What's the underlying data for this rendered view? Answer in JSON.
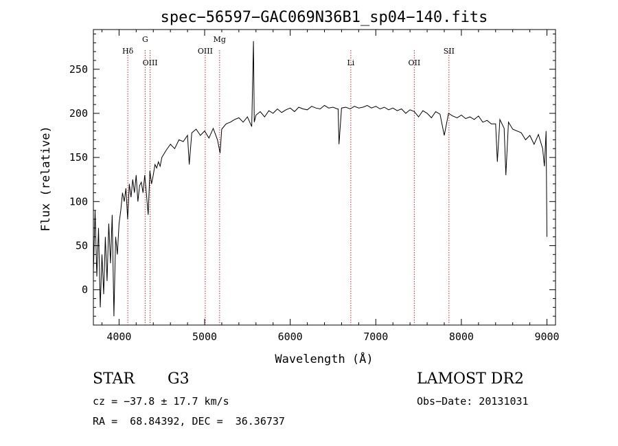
{
  "chart_data": {
    "type": "line",
    "title": "spec−56597−GAC069N36B1_sp04−140.fits",
    "xlabel": "Wavelength (Å)",
    "ylabel": "Flux (relative)",
    "xlim": [
      3700,
      9100
    ],
    "ylim": [
      -40,
      295
    ],
    "xticks": [
      "4000",
      "5000",
      "6000",
      "7000",
      "8000",
      "9000"
    ],
    "yticks": [
      "0",
      "50",
      "100",
      "150",
      "200",
      "250"
    ],
    "grid": false,
    "series": [
      {
        "x": [
          3700,
          3720,
          3740,
          3760,
          3780,
          3800,
          3820,
          3840,
          3860,
          3880,
          3900,
          3920,
          3940,
          3960,
          3980,
          4000,
          4020,
          4040,
          4060,
          4080,
          4100,
          4120,
          4140,
          4160,
          4180,
          4200,
          4220,
          4240,
          4260,
          4280,
          4300,
          4320,
          4340,
          4360,
          4380,
          4400,
          4420,
          4440,
          4460,
          4480,
          4500,
          4550,
          4600,
          4650,
          4700,
          4750,
          4800,
          4820,
          4850,
          4900,
          4950,
          5000,
          5050,
          5100,
          5150,
          5180,
          5200,
          5250,
          5300,
          5350,
          5400,
          5450,
          5500,
          5550,
          5570,
          5580,
          5600,
          5650,
          5700,
          5750,
          5800,
          5850,
          5900,
          5950,
          6000,
          6050,
          6100,
          6150,
          6200,
          6250,
          6300,
          6350,
          6400,
          6450,
          6500,
          6550,
          6560,
          6570,
          6600,
          6650,
          6700,
          6750,
          6800,
          6850,
          6900,
          6950,
          7000,
          7050,
          7100,
          7150,
          7200,
          7250,
          7300,
          7350,
          7400,
          7450,
          7500,
          7550,
          7600,
          7650,
          7700,
          7750,
          7800,
          7850,
          7900,
          7950,
          8000,
          8050,
          8100,
          8150,
          8200,
          8250,
          8300,
          8350,
          8400,
          8420,
          8450,
          8500,
          8520,
          8550,
          8600,
          8650,
          8700,
          8750,
          8800,
          8850,
          8900,
          8950,
          8970,
          8990,
          9000
        ],
        "y": [
          20,
          90,
          15,
          70,
          -20,
          40,
          -5,
          60,
          10,
          75,
          30,
          85,
          -30,
          60,
          40,
          75,
          90,
          110,
          100,
          115,
          80,
          120,
          105,
          125,
          110,
          130,
          100,
          118,
          122,
          110,
          130,
          108,
          85,
          135,
          120,
          130,
          142,
          138,
          145,
          140,
          150,
          158,
          165,
          160,
          170,
          168,
          175,
          142,
          178,
          182,
          175,
          180,
          172,
          183,
          170,
          155,
          182,
          188,
          190,
          193,
          195,
          190,
          196,
          185,
          282,
          190,
          198,
          202,
          196,
          203,
          200,
          205,
          201,
          204,
          206,
          202,
          207,
          205,
          204,
          208,
          206,
          205,
          209,
          206,
          207,
          205,
          205,
          165,
          206,
          207,
          205,
          208,
          206,
          207,
          209,
          206,
          208,
          205,
          207,
          204,
          206,
          203,
          205,
          200,
          204,
          202,
          196,
          203,
          200,
          195,
          202,
          199,
          175,
          200,
          197,
          195,
          198,
          194,
          196,
          193,
          197,
          190,
          192,
          188,
          188,
          145,
          193,
          183,
          130,
          190,
          182,
          180,
          178,
          170,
          175,
          165,
          176,
          160,
          140,
          180,
          60
        ]
      }
    ],
    "line_markers": [
      {
        "label": "Hδ",
        "x": 4102,
        "label_row": "upper"
      },
      {
        "label": "G",
        "x": 4305,
        "label_row": "top"
      },
      {
        "label": "OIII",
        "x": 4363,
        "label_row": "lower"
      },
      {
        "label": "OIII",
        "x": 5007,
        "label_row": "upper"
      },
      {
        "label": "Mg",
        "x": 5175,
        "label_row": "top"
      },
      {
        "label": "Li",
        "x": 6708,
        "label_row": "lower"
      },
      {
        "label": "OII",
        "x": 7450,
        "label_row": "lower"
      },
      {
        "label": "SII",
        "x": 7855,
        "label_row": "upper"
      }
    ],
    "marker_color": "#cc2222"
  },
  "info": {
    "object_class": "STAR",
    "subclass": "G3",
    "survey": "LAMOST DR2",
    "cz": "cz = −37.8 ± 17.7 km/s",
    "obs_date": "Obs−Date: 20131031",
    "coords": "RA =  68.84392, DEC =  36.36737"
  }
}
